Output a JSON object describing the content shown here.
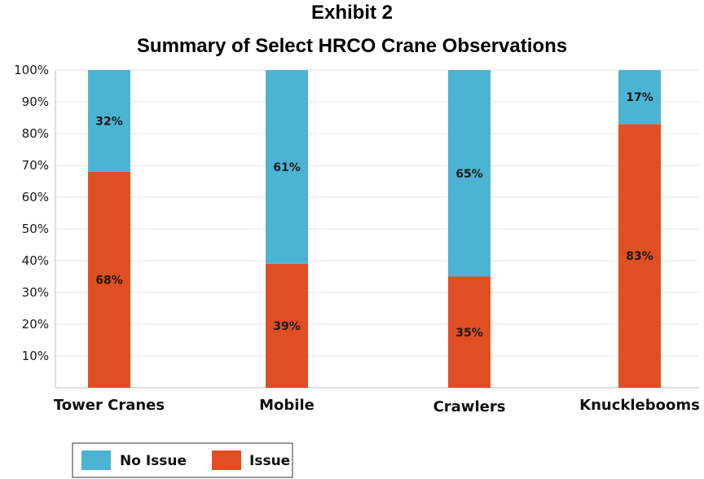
{
  "chart_data": {
    "type": "bar",
    "stacked": true,
    "title": "Exhibit 2",
    "subtitle": "Summary of Select HRCO Crane Observations",
    "categories": [
      "Tower Cranes",
      "Mobile",
      "Crawlers",
      "Knucklebooms"
    ],
    "series": [
      {
        "name": "Issue",
        "values": [
          68,
          39,
          35,
          83
        ],
        "labels": [
          "68%",
          "39%",
          "35%",
          "83%"
        ],
        "color": "#e04e24"
      },
      {
        "name": "No Issue",
        "values": [
          32,
          61,
          65,
          17
        ],
        "labels": [
          "32%",
          "61%",
          "65%",
          "17%"
        ],
        "color": "#4db3d3"
      }
    ],
    "yticks": [
      "10%",
      "20%",
      "30%",
      "40%",
      "50%",
      "60%",
      "70%",
      "80%",
      "90%",
      "100%"
    ],
    "ylim": [
      0,
      100
    ],
    "grid": true,
    "legend_position": "bottom-left",
    "legend": [
      {
        "label": "No Issue",
        "color": "#4db3d3"
      },
      {
        "label": "Issue",
        "color": "#e04e24"
      }
    ]
  }
}
